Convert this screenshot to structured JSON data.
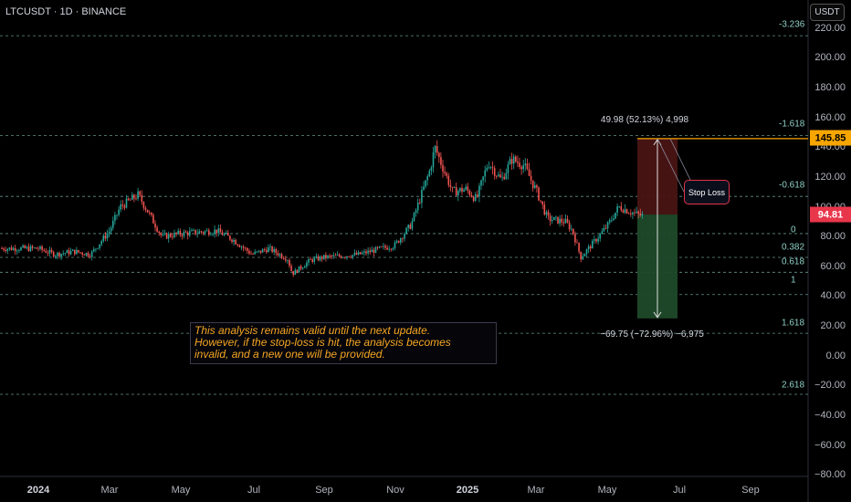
{
  "header": {
    "symbol": "LTCUSDT · 1D · BINANCE",
    "currency_button": "USDT"
  },
  "y_axis": {
    "ticks": [
      "220.00",
      "200.00",
      "180.00",
      "160.00",
      "140.00",
      "120.00",
      "100.00",
      "80.00",
      "60.00",
      "40.00",
      "20.00",
      "0.00",
      "−20.00",
      "−40.00",
      "−60.00",
      "−80.00"
    ]
  },
  "x_axis": {
    "ticks": [
      "2024",
      "Mar",
      "May",
      "Jul",
      "Sep",
      "Nov",
      "2025",
      "Mar",
      "May",
      "Jul",
      "Sep"
    ]
  },
  "price_badges": {
    "current_price": "145.85",
    "entry_price": "94.81"
  },
  "fib_levels": [
    "-3.236",
    "-1.618",
    "-0.618",
    "0",
    "0.382",
    "0.618",
    "1",
    "1.618",
    "2.618"
  ],
  "measure": {
    "top_label": "49.98 (52.13%) 4,998",
    "bottom_label": "−69.75 (−72.96%) −6,975"
  },
  "stop_loss_label": "Stop Loss",
  "note_lines": [
    "This analysis remains valid until the next update.",
    "However, if the stop-loss is hit, the analysis becomes",
    "invalid, and a new one will be provided."
  ],
  "colors": {
    "up": "#26a69a",
    "down": "#ef5350",
    "fib": "#8fd0c6",
    "accent": "#f7a600",
    "loss_zone": "#4a1414",
    "profit_zone": "#1f4a2a"
  },
  "chart_data": {
    "type": "candlestick",
    "symbol": "LTCUSDT",
    "interval": "1D",
    "exchange": "BINANCE",
    "ylim": [
      -80,
      220
    ],
    "points": [
      {
        "x": "2024-01",
        "y": 72
      },
      {
        "x": "2024-01-15",
        "y": 68
      },
      {
        "x": "2024-02",
        "y": 70
      },
      {
        "x": "2024-02-15",
        "y": 68
      },
      {
        "x": "2024-03",
        "y": 84
      },
      {
        "x": "2024-03-10",
        "y": 100
      },
      {
        "x": "2024-03-25",
        "y": 108
      },
      {
        "x": "2024-04",
        "y": 100
      },
      {
        "x": "2024-04-15",
        "y": 80
      },
      {
        "x": "2024-05",
        "y": 82
      },
      {
        "x": "2024-06",
        "y": 84
      },
      {
        "x": "2024-06-15",
        "y": 78
      },
      {
        "x": "2024-07",
        "y": 68
      },
      {
        "x": "2024-07-15",
        "y": 72
      },
      {
        "x": "2024-08",
        "y": 65
      },
      {
        "x": "2024-08-05",
        "y": 55
      },
      {
        "x": "2024-08-20",
        "y": 64
      },
      {
        "x": "2024-09",
        "y": 66
      },
      {
        "x": "2024-10",
        "y": 68
      },
      {
        "x": "2024-10-20",
        "y": 72
      },
      {
        "x": "2024-11",
        "y": 74
      },
      {
        "x": "2024-11-15",
        "y": 88
      },
      {
        "x": "2024-12",
        "y": 125
      },
      {
        "x": "2024-12-05",
        "y": 140
      },
      {
        "x": "2024-12-20",
        "y": 110
      },
      {
        "x": "2025-01",
        "y": 112
      },
      {
        "x": "2025-01-10",
        "y": 105
      },
      {
        "x": "2025-01-20",
        "y": 130
      },
      {
        "x": "2025-02",
        "y": 118
      },
      {
        "x": "2025-02-10",
        "y": 132
      },
      {
        "x": "2025-02-20",
        "y": 128
      },
      {
        "x": "2025-03",
        "y": 110
      },
      {
        "x": "2025-03-10",
        "y": 92
      },
      {
        "x": "2025-03-25",
        "y": 90
      },
      {
        "x": "2025-04",
        "y": 84
      },
      {
        "x": "2025-04-08",
        "y": 66
      },
      {
        "x": "2025-04-25",
        "y": 82
      },
      {
        "x": "2025-05",
        "y": 88
      },
      {
        "x": "2025-05-10",
        "y": 100
      },
      {
        "x": "2025-05-25",
        "y": 95
      },
      {
        "x": "2025-06",
        "y": 94
      }
    ],
    "position": {
      "entry": 94.81,
      "target": 145.85,
      "stop": 25
    },
    "fibonacci": [
      {
        "ratio": "-3.236",
        "price": 215
      },
      {
        "ratio": "-1.618",
        "price": 148
      },
      {
        "ratio": "-0.618",
        "price": 107
      },
      {
        "ratio": "0",
        "price": 82
      },
      {
        "ratio": "0.382",
        "price": 66
      },
      {
        "ratio": "0.618",
        "price": 56
      },
      {
        "ratio": "1",
        "price": 41
      },
      {
        "ratio": "1.618",
        "price": 15
      },
      {
        "ratio": "2.618",
        "price": -26
      }
    ],
    "grid": false,
    "legend": "none"
  }
}
